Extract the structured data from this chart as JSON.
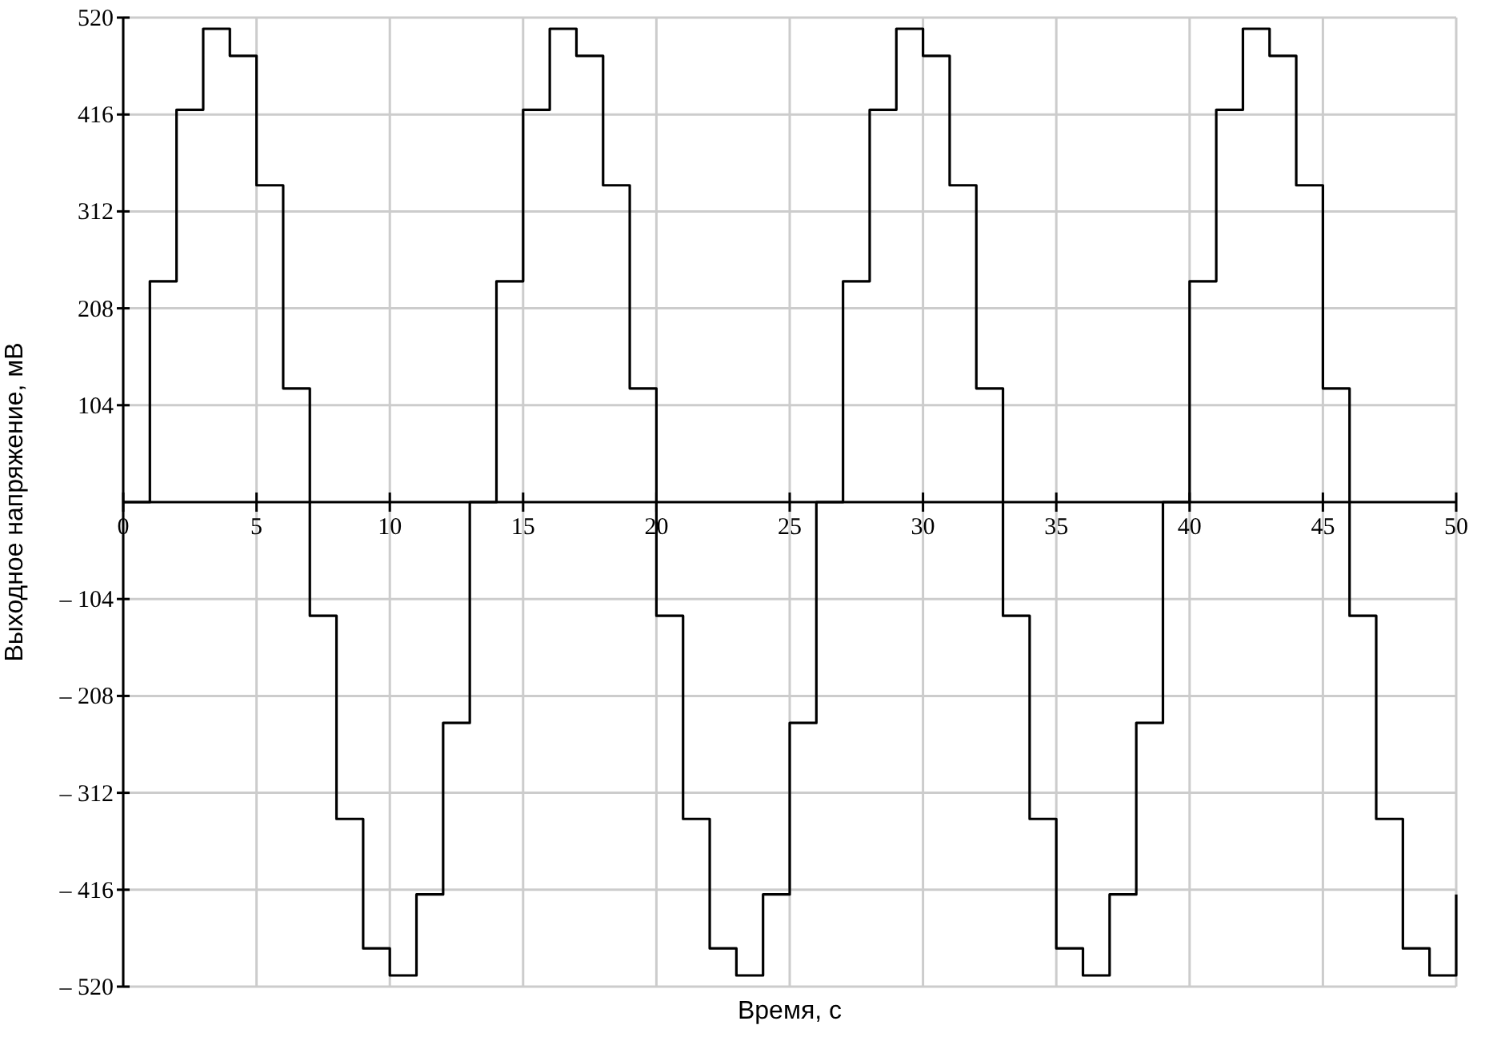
{
  "chart_data": {
    "type": "step",
    "xlabel": "Время, с",
    "ylabel": "Выходное напряжение, мВ",
    "x": [
      0,
      1,
      2,
      3,
      4,
      5,
      6,
      7,
      8,
      9,
      10,
      11,
      12,
      13,
      14,
      15,
      16,
      17,
      18,
      19,
      20,
      21,
      22,
      23,
      24,
      25,
      26,
      27,
      28,
      29,
      30,
      31,
      32,
      33,
      34,
      35,
      36,
      37,
      38,
      39,
      40,
      41,
      42,
      43,
      44,
      45,
      46,
      47,
      48,
      49,
      50
    ],
    "series": [
      {
        "color": "#000000",
        "values": [
          0,
          237,
          421,
          508,
          479,
          340,
          122,
          -122,
          -340,
          -479,
          -508,
          -421,
          -237,
          0,
          237,
          421,
          508,
          479,
          340,
          122,
          -122,
          -340,
          -479,
          -508,
          -421,
          -237,
          0,
          237,
          421,
          508,
          479,
          340,
          122,
          -122,
          -340,
          -479,
          -508,
          -421,
          -237,
          0,
          237,
          421,
          508,
          479,
          340,
          122,
          -122,
          -340,
          -479,
          -508,
          -421
        ]
      }
    ],
    "xlim": [
      0,
      50
    ],
    "xticks": [
      0,
      5,
      10,
      15,
      20,
      25,
      30,
      35,
      40,
      45,
      50
    ],
    "ylim": [
      -520,
      520
    ],
    "yticks": [
      {
        "value": -520,
        "label": "– 520"
      },
      {
        "value": -416,
        "label": "– 416"
      },
      {
        "value": -312,
        "label": "– 312"
      },
      {
        "value": -208,
        "label": "– 208"
      },
      {
        "value": -104,
        "label": "– 104"
      },
      104,
      208,
      312,
      416,
      520
    ],
    "grid": true,
    "marker": "none",
    "line_style": "solid"
  }
}
